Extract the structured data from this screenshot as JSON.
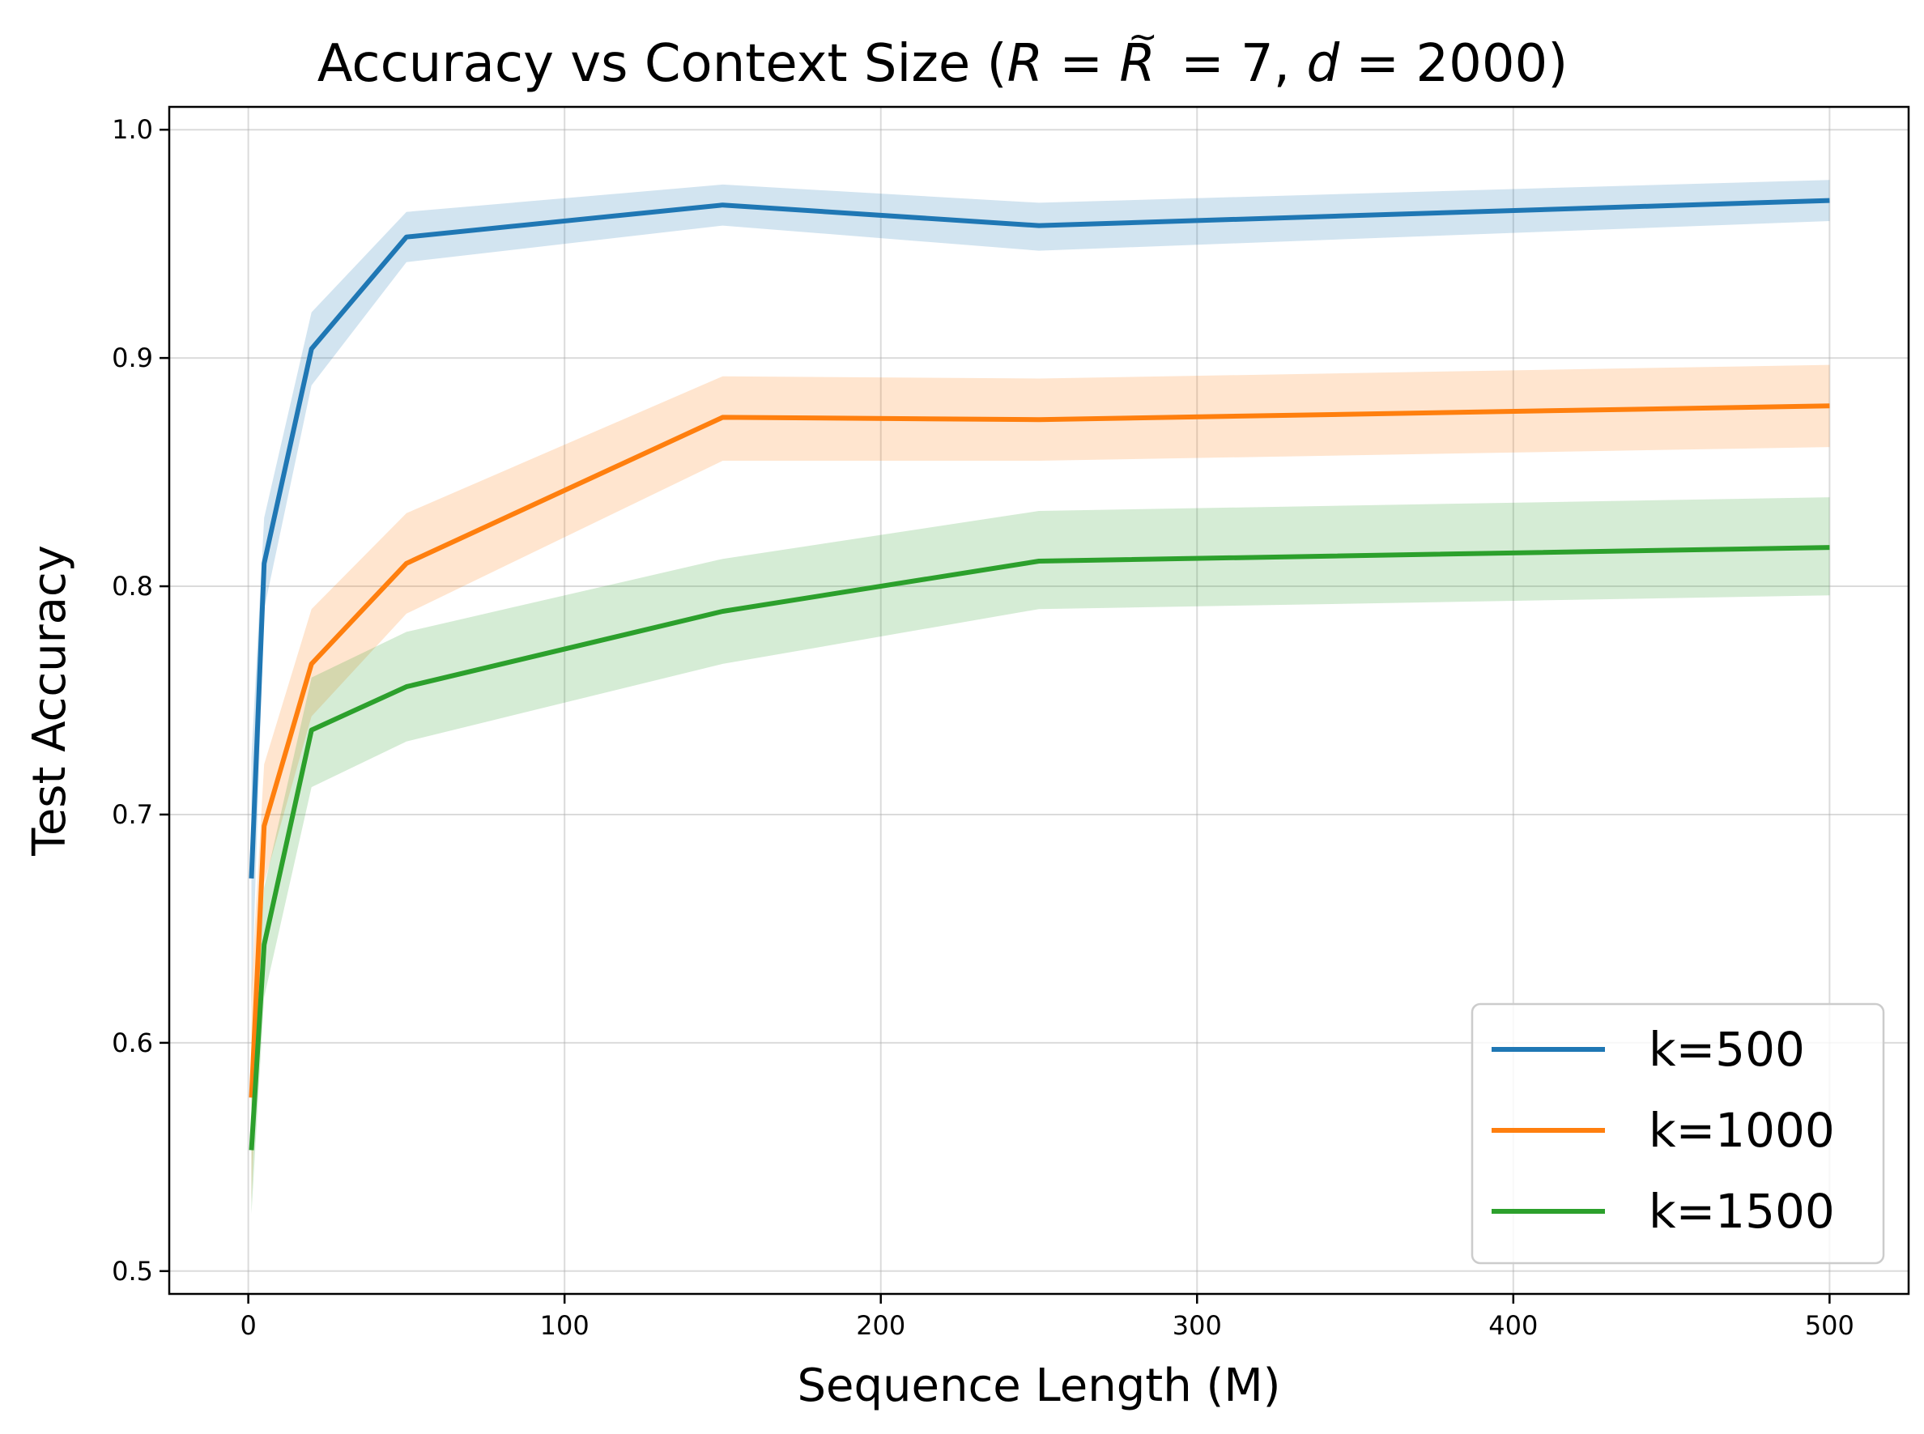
{
  "chart_data": {
    "type": "line",
    "title": {
      "prefix": "Accuracy vs Context Size (",
      "var_r": "R",
      "eq1": " = ",
      "var_rtilde": "R",
      "tilde": "~",
      "eq2": " = 7, ",
      "var_d": "d",
      "eq3": " = 2000)"
    },
    "xlabel": "Sequence Length (M)",
    "ylabel": "Test Accuracy",
    "xlim": [
      -25,
      525
    ],
    "ylim": [
      0.49,
      1.01
    ],
    "xticks": [
      0,
      100,
      200,
      300,
      400,
      500
    ],
    "xtick_labels": [
      "0",
      "100",
      "200",
      "300",
      "400",
      "500"
    ],
    "yticks": [
      0.5,
      0.6,
      0.7,
      0.8,
      0.9,
      1.0
    ],
    "ytick_labels": [
      "0.5",
      "0.6",
      "0.7",
      "0.8",
      "0.9",
      "1.0"
    ],
    "grid": true,
    "legend_position": "lower-right",
    "x": [
      1,
      5,
      20,
      50,
      150,
      250,
      500
    ],
    "series": [
      {
        "name": "k=500",
        "color": "#1f77b4",
        "values": [
          0.672,
          0.81,
          0.904,
          0.953,
          0.967,
          0.958,
          0.969
        ],
        "lower": [
          0.615,
          0.79,
          0.888,
          0.942,
          0.958,
          0.947,
          0.96
        ],
        "upper": [
          0.725,
          0.83,
          0.92,
          0.964,
          0.976,
          0.968,
          0.978
        ]
      },
      {
        "name": "k=1000",
        "color": "#ff7f0e",
        "values": [
          0.576,
          0.695,
          0.766,
          0.81,
          0.874,
          0.873,
          0.879
        ],
        "lower": [
          0.53,
          0.67,
          0.743,
          0.788,
          0.855,
          0.855,
          0.861
        ],
        "upper": [
          0.625,
          0.722,
          0.79,
          0.832,
          0.892,
          0.891,
          0.897
        ]
      },
      {
        "name": "k=1500",
        "color": "#2ca02c",
        "values": [
          0.553,
          0.643,
          0.737,
          0.756,
          0.789,
          0.811,
          0.817
        ],
        "lower": [
          0.525,
          0.62,
          0.712,
          0.732,
          0.766,
          0.79,
          0.796
        ],
        "upper": [
          0.58,
          0.668,
          0.76,
          0.78,
          0.812,
          0.833,
          0.839
        ]
      }
    ]
  }
}
